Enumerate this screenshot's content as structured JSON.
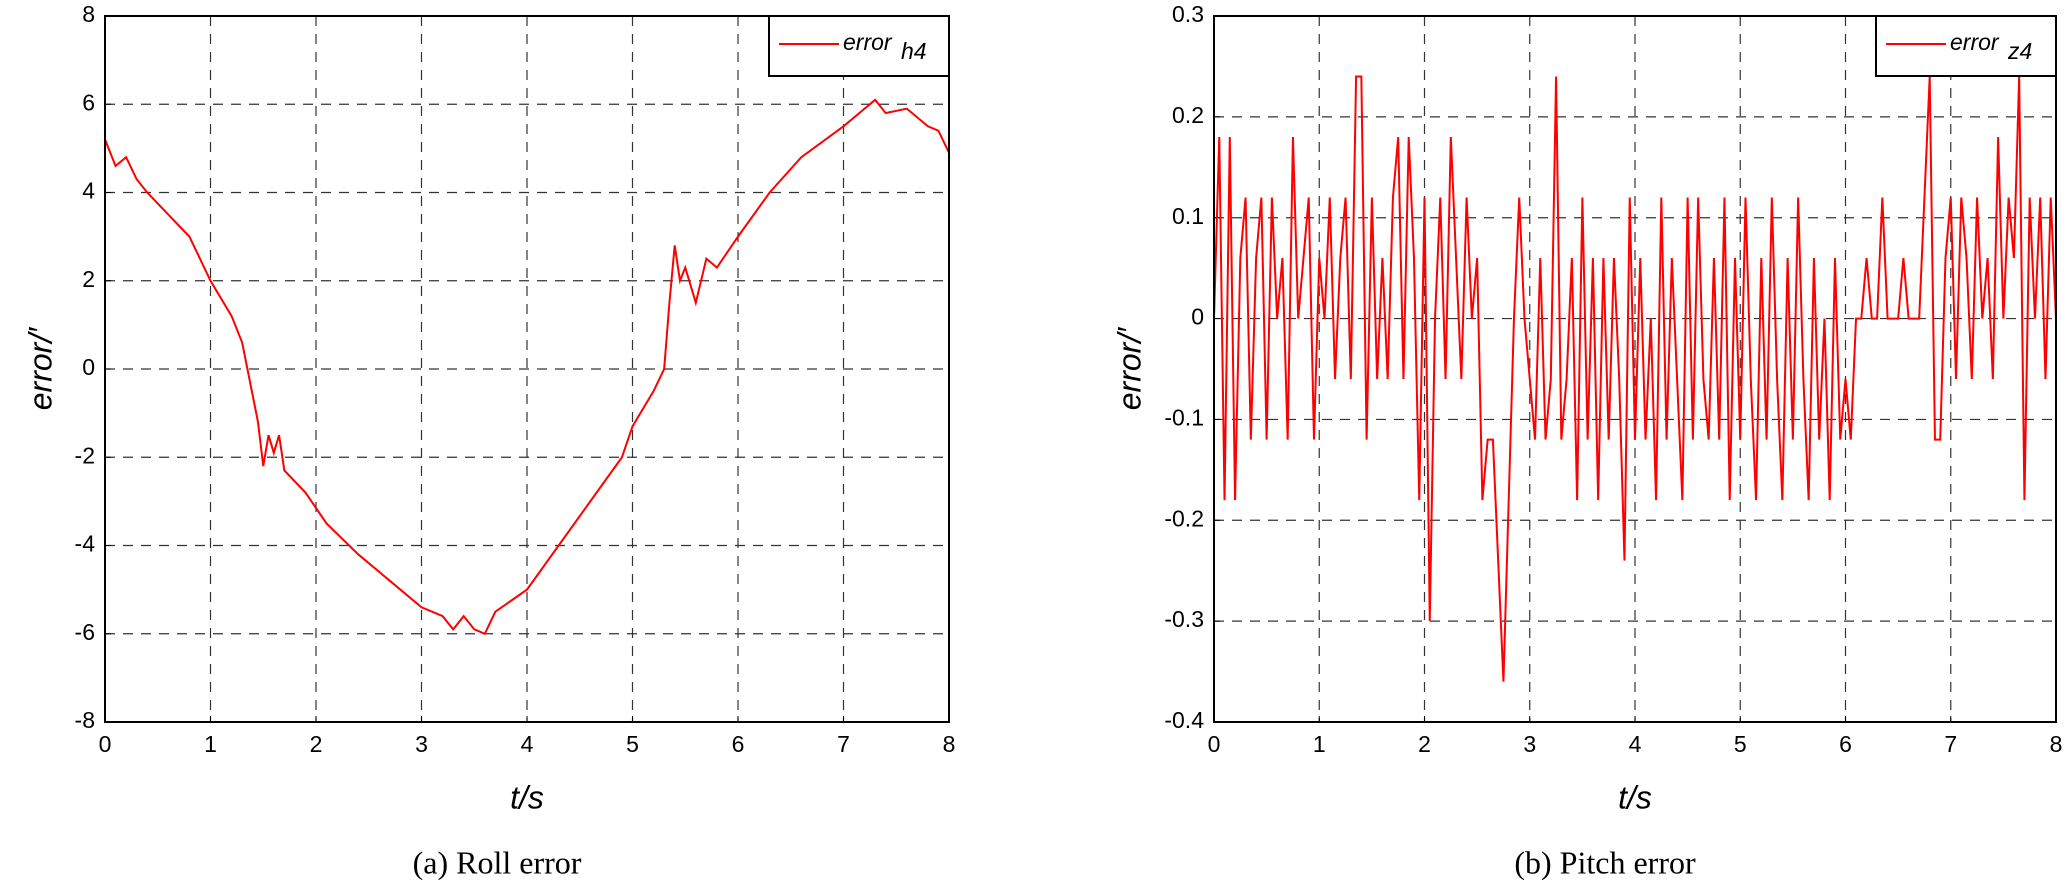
{
  "chart_data": [
    {
      "type": "line",
      "caption": "(a) Roll error",
      "xlabel": "t/s",
      "ylabel": "error/′",
      "xlim": [
        0,
        8
      ],
      "xticks": [
        0,
        1,
        2,
        3,
        4,
        5,
        6,
        7,
        8
      ],
      "ylim": [
        -8,
        8
      ],
      "yticks": [
        -8,
        -6,
        -4,
        -2,
        0,
        2,
        4,
        6,
        8
      ],
      "grid": true,
      "legend": "upper right",
      "x": [
        0,
        0.1,
        0.2,
        0.3,
        0.4,
        0.6,
        0.8,
        1.0,
        1.2,
        1.3,
        1.35,
        1.45,
        1.5,
        1.55,
        1.6,
        1.65,
        1.7,
        1.9,
        2.1,
        2.4,
        2.7,
        3.0,
        3.2,
        3.3,
        3.4,
        3.5,
        3.6,
        3.7,
        4.0,
        4.3,
        4.6,
        4.9,
        5.0,
        5.2,
        5.3,
        5.35,
        5.4,
        5.45,
        5.5,
        5.6,
        5.7,
        5.8,
        6.0,
        6.3,
        6.6,
        7.0,
        7.2,
        7.3,
        7.4,
        7.6,
        7.8,
        7.9,
        8.0
      ],
      "series": [
        {
          "name": "error",
          "subscript": "h4",
          "color": "#ff0000",
          "values": [
            5.2,
            4.6,
            4.8,
            4.3,
            4.0,
            3.5,
            3.0,
            2.0,
            1.2,
            0.6,
            0.0,
            -1.2,
            -2.2,
            -1.5,
            -1.9,
            -1.5,
            -2.3,
            -2.8,
            -3.5,
            -4.2,
            -4.8,
            -5.4,
            -5.6,
            -5.9,
            -5.6,
            -5.9,
            -6.0,
            -5.5,
            -5.0,
            -4.0,
            -3.0,
            -2.0,
            -1.3,
            -0.5,
            0.0,
            1.5,
            2.8,
            2.0,
            2.3,
            1.5,
            2.5,
            2.3,
            3.0,
            4.0,
            4.8,
            5.5,
            5.9,
            6.1,
            5.8,
            5.9,
            5.5,
            5.4,
            4.9
          ]
        }
      ]
    },
    {
      "type": "line",
      "caption": "(b) Pitch error",
      "xlabel": "t/s",
      "ylabel": "error/′",
      "xlim": [
        0,
        8
      ],
      "xticks": [
        0,
        1,
        2,
        3,
        4,
        5,
        6,
        7,
        8
      ],
      "ylim": [
        -0.4,
        0.3
      ],
      "yticks": [
        -0.4,
        -0.3,
        -0.2,
        -0.1,
        0,
        0.1,
        0.2,
        0.3
      ],
      "grid": true,
      "legend": "upper right",
      "x": [
        0,
        0.05,
        0.1,
        0.15,
        0.2,
        0.25,
        0.3,
        0.35,
        0.4,
        0.45,
        0.5,
        0.55,
        0.6,
        0.65,
        0.7,
        0.75,
        0.8,
        0.85,
        0.9,
        0.95,
        1.0,
        1.05,
        1.1,
        1.15,
        1.2,
        1.25,
        1.3,
        1.35,
        1.4,
        1.45,
        1.5,
        1.55,
        1.6,
        1.65,
        1.7,
        1.75,
        1.8,
        1.85,
        1.9,
        1.95,
        2.0,
        2.05,
        2.1,
        2.15,
        2.2,
        2.25,
        2.3,
        2.35,
        2.4,
        2.45,
        2.5,
        2.55,
        2.6,
        2.65,
        2.7,
        2.75,
        2.8,
        2.85,
        2.9,
        2.95,
        3.0,
        3.05,
        3.1,
        3.15,
        3.2,
        3.25,
        3.3,
        3.35,
        3.4,
        3.45,
        3.5,
        3.55,
        3.6,
        3.65,
        3.7,
        3.75,
        3.8,
        3.85,
        3.9,
        3.95,
        4.0,
        4.05,
        4.1,
        4.15,
        4.2,
        4.25,
        4.3,
        4.35,
        4.4,
        4.45,
        4.5,
        4.55,
        4.6,
        4.65,
        4.7,
        4.75,
        4.8,
        4.85,
        4.9,
        4.95,
        5.0,
        5.05,
        5.1,
        5.15,
        5.2,
        5.25,
        5.3,
        5.35,
        5.4,
        5.45,
        5.5,
        5.55,
        5.6,
        5.65,
        5.7,
        5.75,
        5.8,
        5.85,
        5.9,
        5.95,
        6.0,
        6.05,
        6.1,
        6.15,
        6.2,
        6.25,
        6.3,
        6.35,
        6.4,
        6.45,
        6.5,
        6.55,
        6.6,
        6.65,
        6.7,
        6.75,
        6.8,
        6.85,
        6.9,
        6.95,
        7.0,
        7.05,
        7.1,
        7.15,
        7.2,
        7.25,
        7.3,
        7.35,
        7.4,
        7.45,
        7.5,
        7.55,
        7.6,
        7.65,
        7.7,
        7.75,
        7.8,
        7.85,
        7.9,
        7.95,
        8.0
      ],
      "series": [
        {
          "name": "error",
          "subscript": "z4",
          "color": "#ff0000",
          "values": [
            0,
            0.18,
            -0.18,
            0.18,
            -0.18,
            0.06,
            0.12,
            -0.12,
            0.06,
            0.12,
            -0.12,
            0.12,
            0,
            0.06,
            -0.12,
            0.18,
            0,
            0.06,
            0.12,
            -0.12,
            0.06,
            0,
            0.12,
            -0.06,
            0.06,
            0.12,
            -0.06,
            0.24,
            0.24,
            -0.12,
            0.12,
            -0.06,
            0.06,
            -0.06,
            0.12,
            0.18,
            -0.06,
            0.18,
            0.06,
            -0.18,
            0.12,
            -0.3,
            0,
            0.12,
            -0.06,
            0.18,
            0.06,
            -0.06,
            0.12,
            0,
            0.06,
            -0.18,
            -0.12,
            -0.12,
            -0.24,
            -0.36,
            -0.18,
            0,
            0.12,
            0,
            -0.06,
            -0.12,
            0.06,
            -0.12,
            -0.06,
            0.24,
            -0.12,
            -0.06,
            0.06,
            -0.18,
            0.12,
            -0.12,
            0.06,
            -0.18,
            0.06,
            -0.12,
            0.06,
            -0.06,
            -0.24,
            0.12,
            -0.12,
            0.06,
            -0.12,
            0,
            -0.18,
            0.12,
            -0.12,
            0.06,
            -0.06,
            -0.18,
            0.12,
            -0.12,
            0.12,
            -0.06,
            -0.12,
            0.06,
            -0.12,
            0.12,
            -0.18,
            0.06,
            -0.12,
            0.12,
            -0.06,
            -0.18,
            0.06,
            -0.12,
            0.12,
            -0.06,
            -0.18,
            0.06,
            -0.12,
            0.12,
            -0.06,
            -0.18,
            0.06,
            -0.12,
            0,
            -0.18,
            0.06,
            -0.12,
            -0.06,
            -0.12,
            0,
            0,
            0.06,
            0,
            0,
            0.12,
            0,
            0,
            0,
            0.06,
            0,
            0,
            0,
            0.12,
            0.24,
            -0.12,
            -0.12,
            0.06,
            0.12,
            -0.06,
            0.12,
            0.06,
            -0.06,
            0.12,
            0,
            0.06,
            -0.06,
            0.18,
            0,
            0.12,
            0.06,
            0.24,
            -0.18,
            0.12,
            0,
            0.12,
            -0.06,
            0.12,
            0
          ]
        }
      ]
    }
  ]
}
